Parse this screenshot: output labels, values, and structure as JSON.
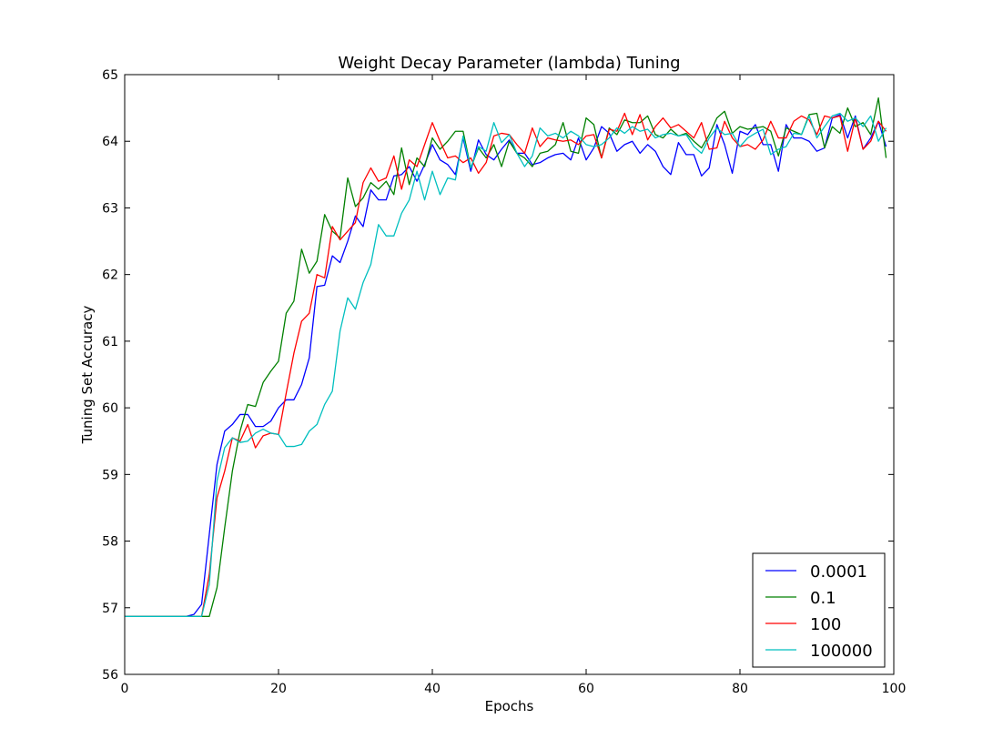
{
  "chart_data": {
    "type": "line",
    "title": "Weight Decay Parameter (lambda) Tuning",
    "xlabel": "Epochs",
    "ylabel": "Tuning Set Accuracy",
    "xlim": [
      0,
      100
    ],
    "ylim": [
      56,
      65
    ],
    "xticks": [
      "0",
      "20",
      "40",
      "60",
      "80",
      "100"
    ],
    "yticks": [
      "56",
      "57",
      "58",
      "59",
      "60",
      "61",
      "62",
      "63",
      "64",
      "65"
    ],
    "grid": false,
    "legend_placement": "lower-right",
    "x": [
      0,
      1,
      2,
      3,
      4,
      5,
      6,
      7,
      8,
      9,
      10,
      11,
      12,
      13,
      14,
      15,
      16,
      17,
      18,
      19,
      20,
      21,
      22,
      23,
      24,
      25,
      26,
      27,
      28,
      29,
      30,
      31,
      32,
      33,
      34,
      35,
      36,
      37,
      38,
      39,
      40,
      41,
      42,
      43,
      44,
      45,
      46,
      47,
      48,
      49,
      50,
      51,
      52,
      53,
      54,
      55,
      56,
      57,
      58,
      59,
      60,
      61,
      62,
      63,
      64,
      65,
      66,
      67,
      68,
      69,
      70,
      71,
      72,
      73,
      74,
      75,
      76,
      77,
      78,
      79,
      80,
      81,
      82,
      83,
      84,
      85,
      86,
      87,
      88,
      89,
      90,
      91,
      92,
      93,
      94,
      95,
      96,
      97,
      98,
      99
    ],
    "series": [
      {
        "name": "0.0001",
        "color": "#0000ff",
        "values": [
          56.87,
          56.87,
          56.87,
          56.87,
          56.87,
          56.87,
          56.87,
          56.87,
          56.87,
          56.9,
          57.05,
          58.1,
          59.15,
          59.65,
          59.75,
          59.9,
          59.9,
          59.72,
          59.72,
          59.8,
          60.0,
          60.12,
          60.12,
          60.35,
          60.75,
          61.82,
          61.84,
          62.28,
          62.18,
          62.5,
          62.88,
          62.72,
          63.27,
          63.12,
          63.12,
          63.48,
          63.5,
          63.62,
          63.4,
          63.65,
          63.95,
          63.72,
          63.65,
          63.5,
          64.05,
          63.55,
          64.02,
          63.8,
          63.72,
          63.88,
          64.02,
          63.82,
          63.82,
          63.65,
          63.68,
          63.75,
          63.8,
          63.82,
          63.72,
          64.05,
          63.72,
          63.9,
          64.22,
          64.12,
          63.85,
          63.95,
          64.0,
          63.82,
          63.95,
          63.85,
          63.62,
          63.5,
          63.98,
          63.8,
          63.8,
          63.48,
          63.6,
          64.25,
          63.95,
          63.52,
          64.15,
          64.1,
          64.25,
          63.95,
          63.95,
          63.55,
          64.25,
          64.05,
          64.05,
          64.0,
          63.85,
          63.9,
          64.35,
          64.4,
          64.05,
          64.38,
          63.88,
          64.05,
          64.3,
          63.92
        ]
      },
      {
        "name": "0.1",
        "color": "#008000",
        "values": [
          56.87,
          56.87,
          56.87,
          56.87,
          56.87,
          56.87,
          56.87,
          56.87,
          56.87,
          56.87,
          56.87,
          56.87,
          57.3,
          58.2,
          59.05,
          59.65,
          60.05,
          60.02,
          60.38,
          60.55,
          60.7,
          61.42,
          61.6,
          62.38,
          62.02,
          62.2,
          62.9,
          62.65,
          62.55,
          63.45,
          63.02,
          63.15,
          63.38,
          63.28,
          63.4,
          63.2,
          63.9,
          63.35,
          63.75,
          63.62,
          64.05,
          63.88,
          64.0,
          64.15,
          64.15,
          63.6,
          63.9,
          63.75,
          63.95,
          63.62,
          64.0,
          63.82,
          63.75,
          63.62,
          63.82,
          63.85,
          63.95,
          64.28,
          63.85,
          63.82,
          64.35,
          64.25,
          63.75,
          64.2,
          64.1,
          64.32,
          64.28,
          64.28,
          64.38,
          64.1,
          64.05,
          64.18,
          64.08,
          64.12,
          64.0,
          63.9,
          64.1,
          64.35,
          64.45,
          64.12,
          64.22,
          64.18,
          64.2,
          64.22,
          64.15,
          63.78,
          64.2,
          64.15,
          64.1,
          64.4,
          64.42,
          63.9,
          64.22,
          64.12,
          64.5,
          64.22,
          64.28,
          64.1,
          64.65,
          63.75
        ]
      },
      {
        "name": "100",
        "color": "#ff0000",
        "values": [
          56.87,
          56.87,
          56.87,
          56.87,
          56.87,
          56.87,
          56.87,
          56.87,
          56.87,
          56.87,
          56.87,
          57.5,
          58.65,
          59.05,
          59.55,
          59.5,
          59.75,
          59.4,
          59.58,
          59.62,
          59.6,
          60.22,
          60.82,
          61.3,
          61.42,
          62.0,
          61.95,
          62.72,
          62.52,
          62.65,
          62.78,
          63.38,
          63.6,
          63.4,
          63.45,
          63.78,
          63.28,
          63.72,
          63.62,
          63.95,
          64.28,
          64.0,
          63.75,
          63.78,
          63.68,
          63.75,
          63.52,
          63.68,
          64.08,
          64.12,
          64.1,
          63.95,
          63.82,
          64.2,
          63.92,
          64.05,
          64.02,
          64.0,
          64.02,
          63.95,
          64.08,
          64.1,
          63.75,
          64.18,
          64.15,
          64.42,
          64.1,
          64.4,
          64.02,
          64.22,
          64.35,
          64.2,
          64.25,
          64.15,
          64.05,
          64.28,
          63.88,
          63.9,
          64.3,
          64.05,
          63.92,
          63.95,
          63.88,
          64.02,
          64.3,
          64.05,
          64.05,
          64.3,
          64.38,
          64.32,
          64.1,
          64.38,
          64.35,
          64.38,
          63.85,
          64.35,
          63.88,
          64.0,
          64.3,
          64.15
        ]
      },
      {
        "name": "100000",
        "color": "#00bfbf",
        "values": [
          56.87,
          56.87,
          56.87,
          56.87,
          56.87,
          56.87,
          56.87,
          56.87,
          56.87,
          56.87,
          56.87,
          57.35,
          58.9,
          59.4,
          59.55,
          59.48,
          59.5,
          59.62,
          59.68,
          59.62,
          59.6,
          59.42,
          59.42,
          59.45,
          59.65,
          59.75,
          60.05,
          60.25,
          61.15,
          61.65,
          61.48,
          61.88,
          62.15,
          62.75,
          62.58,
          62.58,
          62.92,
          63.12,
          63.55,
          63.12,
          63.55,
          63.2,
          63.45,
          63.42,
          64.08,
          63.6,
          63.92,
          63.85,
          64.28,
          63.98,
          64.1,
          63.82,
          63.62,
          63.78,
          64.2,
          64.08,
          64.12,
          64.05,
          64.15,
          64.08,
          63.95,
          63.92,
          63.95,
          64.05,
          64.2,
          64.12,
          64.22,
          64.15,
          64.18,
          64.05,
          64.1,
          64.12,
          64.08,
          64.1,
          63.92,
          63.82,
          64.05,
          64.2,
          64.1,
          64.12,
          63.92,
          64.05,
          64.12,
          64.18,
          63.8,
          63.88,
          63.92,
          64.12,
          64.1,
          64.38,
          64.05,
          64.22,
          64.38,
          64.42,
          64.3,
          64.35,
          64.22,
          64.38,
          64.0,
          64.2
        ]
      }
    ]
  }
}
